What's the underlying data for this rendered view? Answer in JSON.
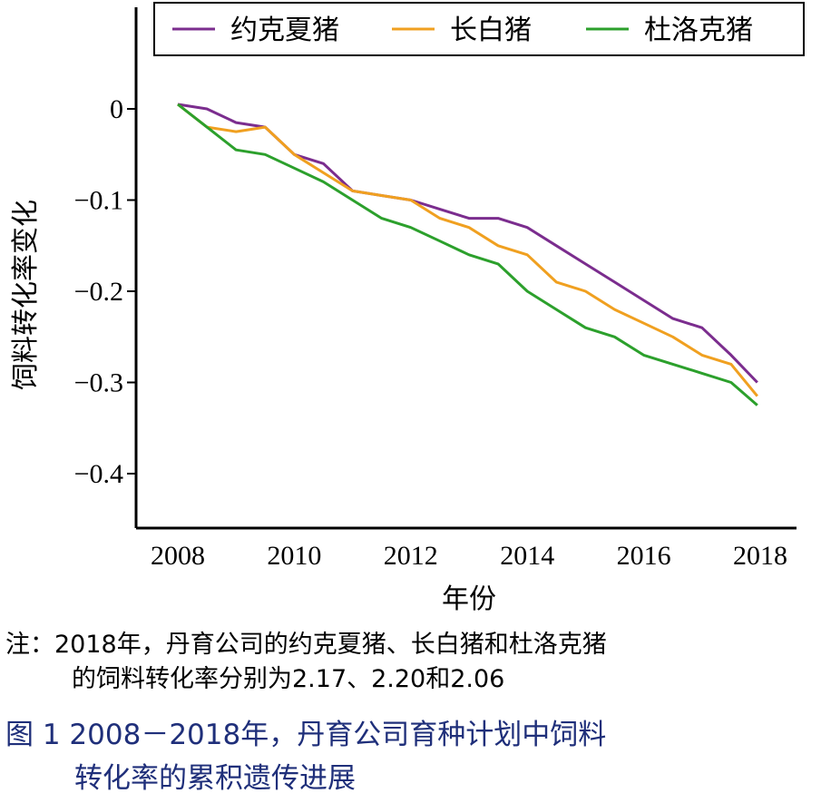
{
  "chart_data": {
    "type": "line",
    "xlabel": "年份",
    "ylabel": "饲料转化率变化",
    "xlim": [
      2008,
      2018
    ],
    "ylim": [
      -0.45,
      0.1
    ],
    "x_ticks": [
      "2008",
      "2010",
      "2012",
      "2014",
      "2016",
      "2018"
    ],
    "y_ticks": [
      "0",
      "−0.1",
      "−0.2",
      "−0.3",
      "−0.4"
    ],
    "legend_position": "top-right",
    "grid": false,
    "series": [
      {
        "name": "约克夏猪",
        "color": "#7b2d8e",
        "x": [
          2008.0,
          2008.5,
          2009.0,
          2009.5,
          2010.0,
          2010.5,
          2011.0,
          2011.5,
          2012.0,
          2012.5,
          2013.0,
          2013.5,
          2014.0,
          2014.5,
          2015.0,
          2015.5,
          2016.0,
          2016.5,
          2017.0,
          2017.5,
          2017.95
        ],
        "y": [
          0.005,
          0.0,
          -0.015,
          -0.02,
          -0.05,
          -0.06,
          -0.09,
          -0.095,
          -0.1,
          -0.11,
          -0.12,
          -0.12,
          -0.13,
          -0.15,
          -0.17,
          -0.19,
          -0.21,
          -0.23,
          -0.24,
          -0.27,
          -0.3
        ]
      },
      {
        "name": "长白猪",
        "color": "#f0a020",
        "x": [
          2008.0,
          2008.5,
          2009.0,
          2009.5,
          2010.0,
          2010.5,
          2011.0,
          2011.5,
          2012.0,
          2012.5,
          2013.0,
          2013.5,
          2014.0,
          2014.5,
          2015.0,
          2015.5,
          2016.0,
          2016.5,
          2017.0,
          2017.5,
          2017.95
        ],
        "y": [
          0.005,
          -0.02,
          -0.025,
          -0.02,
          -0.05,
          -0.07,
          -0.09,
          -0.095,
          -0.1,
          -0.12,
          -0.13,
          -0.15,
          -0.16,
          -0.19,
          -0.2,
          -0.22,
          -0.235,
          -0.25,
          -0.27,
          -0.28,
          -0.315
        ]
      },
      {
        "name": "杜洛克猪",
        "color": "#2ca02c",
        "x": [
          2008.0,
          2008.5,
          2009.0,
          2009.5,
          2010.0,
          2010.5,
          2011.0,
          2011.5,
          2012.0,
          2012.5,
          2013.0,
          2013.5,
          2014.0,
          2014.5,
          2015.0,
          2015.5,
          2016.0,
          2016.5,
          2017.0,
          2017.5,
          2017.95
        ],
        "y": [
          0.005,
          -0.02,
          -0.045,
          -0.05,
          -0.065,
          -0.08,
          -0.1,
          -0.12,
          -0.13,
          -0.145,
          -0.16,
          -0.17,
          -0.2,
          -0.22,
          -0.24,
          -0.25,
          -0.27,
          -0.28,
          -0.29,
          -0.3,
          -0.325
        ]
      }
    ]
  },
  "note": {
    "line1": "注：2018年，丹育公司的约克夏猪、长白猪和杜洛克猪",
    "line2": "的饲料转化率分别为2.17、2.20和2.06"
  },
  "caption": {
    "line1": "图 1  2008－2018年，丹育公司育种计划中饲料",
    "line2": "转化率的累积遗传进展"
  }
}
